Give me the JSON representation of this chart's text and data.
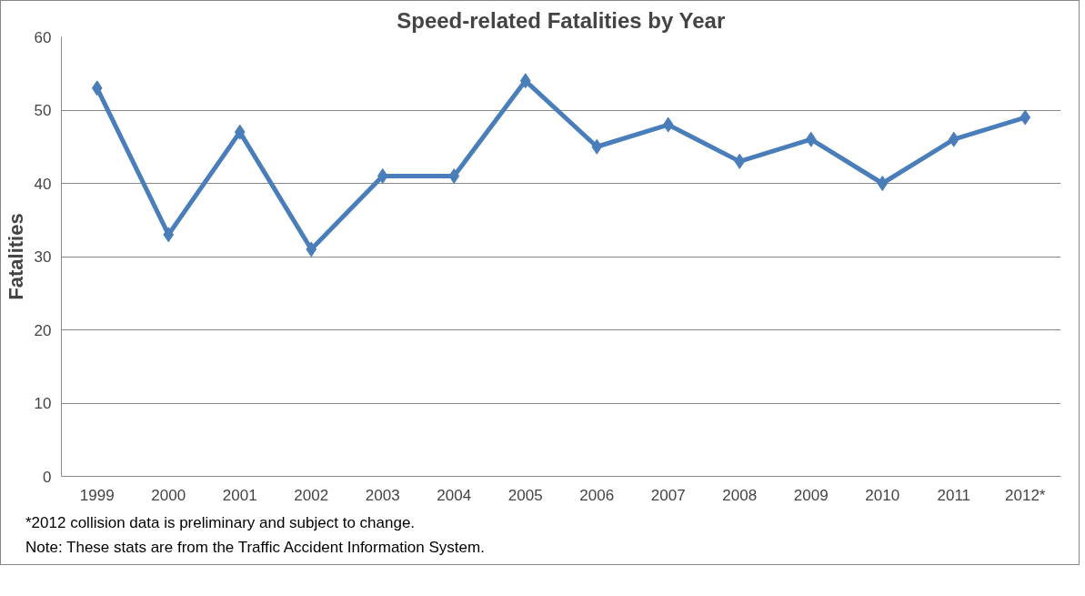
{
  "chart_data": {
    "type": "line",
    "title": "Speed-related Fatalities by Year",
    "ylabel": "Fatalities",
    "categories": [
      "1999",
      "2000",
      "2001",
      "2002",
      "2003",
      "2004",
      "2005",
      "2006",
      "2007",
      "2008",
      "2009",
      "2010",
      "2011",
      "2012*"
    ],
    "series": [
      {
        "color": "#4a7ebb",
        "values": [
          53,
          33,
          47,
          31,
          41,
          41,
          54,
          45,
          48,
          43,
          46,
          40,
          46,
          49
        ]
      }
    ],
    "ylim": [
      0,
      60
    ],
    "yticks": [
      0,
      10,
      20,
      30,
      40,
      50,
      60
    ],
    "grid": "y",
    "marker": "diamond",
    "line_style": "solid",
    "annotations": [
      "*2012 collision data is preliminary and subject to change.",
      "Note: These stats are from the Traffic Accident Information System."
    ]
  }
}
